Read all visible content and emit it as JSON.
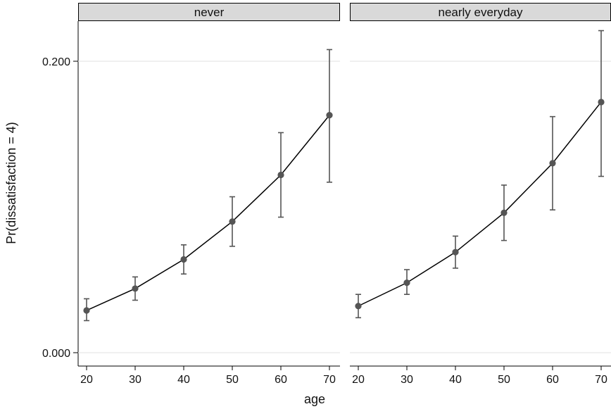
{
  "chart_data": {
    "type": "line",
    "panels": [
      "never",
      "nearly everyday"
    ],
    "x": [
      20,
      30,
      40,
      50,
      60,
      70
    ],
    "xlabel": "age",
    "ylabel": "Pr(dissatisfaction = 4)",
    "ylim": [
      0,
      0.22
    ],
    "yticks": [
      "0.000",
      "0.200"
    ],
    "ytick_values": [
      0,
      0.2
    ],
    "grid": true,
    "legend": "none",
    "series": [
      {
        "panel": "never",
        "values": [
          0.029,
          0.044,
          0.064,
          0.09,
          0.122,
          0.163
        ],
        "ci_lower": [
          0.022,
          0.036,
          0.054,
          0.073,
          0.093,
          0.117
        ],
        "ci_upper": [
          0.037,
          0.052,
          0.074,
          0.107,
          0.151,
          0.208
        ]
      },
      {
        "panel": "nearly everyday",
        "values": [
          0.032,
          0.048,
          0.069,
          0.096,
          0.13,
          0.172
        ],
        "ci_lower": [
          0.024,
          0.04,
          0.058,
          0.077,
          0.098,
          0.121
        ],
        "ci_upper": [
          0.04,
          0.057,
          0.08,
          0.115,
          0.162,
          0.221
        ]
      }
    ],
    "colors": {
      "line": "#000000",
      "marker": "#555555",
      "errorbar": "#555555",
      "strip": "#d9d9d9",
      "gridline": "#e6e6e6"
    }
  }
}
